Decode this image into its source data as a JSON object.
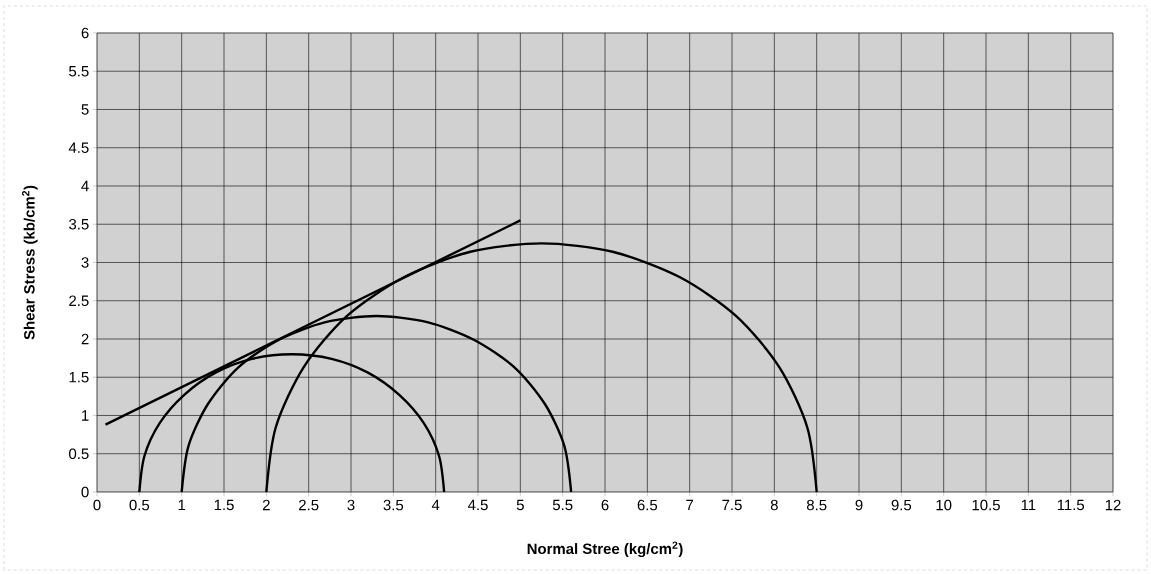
{
  "chart_data": {
    "type": "line",
    "xlabel": "Normal Stree (kg/cm$^{2}$)",
    "ylabel": "Shear Stress (kb/cm$^{2}$)",
    "xlim": [
      0,
      12
    ],
    "ylim": [
      0,
      6
    ],
    "xticks": [
      0,
      0.5,
      1,
      1.5,
      2,
      2.5,
      3,
      3.5,
      4,
      4.5,
      5,
      5.5,
      6,
      6.5,
      7,
      7.5,
      8,
      8.5,
      9,
      9.5,
      10,
      10.5,
      11,
      11.5,
      12
    ],
    "yticks": [
      0,
      0.5,
      1,
      1.5,
      2,
      2.5,
      3,
      3.5,
      4,
      4.5,
      5,
      5.5,
      6
    ],
    "grid": true,
    "marker": "none",
    "line_style": "solid",
    "series": [
      {
        "color": "#000000",
        "x": [
          4.1,
          4.04,
          3.86,
          3.57,
          3.2,
          2.77,
          2.3,
          1.83,
          1.4,
          1.03,
          0.74,
          0.56,
          0.5
        ],
        "values": [
          0,
          0.47,
          0.9,
          1.27,
          1.56,
          1.74,
          1.8,
          1.74,
          1.56,
          1.27,
          0.9,
          0.47,
          0
        ]
      },
      {
        "color": "#000000",
        "x": [
          5.6,
          5.52,
          5.29,
          4.93,
          4.45,
          3.9,
          3.3,
          2.7,
          2.15,
          1.67,
          1.31,
          1.08,
          1.0
        ],
        "values": [
          0,
          0.6,
          1.15,
          1.63,
          1.99,
          2.22,
          2.3,
          2.22,
          1.99,
          1.63,
          1.15,
          0.6,
          0
        ]
      },
      {
        "color": "#000000",
        "x": [
          8.5,
          8.39,
          8.06,
          7.55,
          6.88,
          6.09,
          5.25,
          4.41,
          3.63,
          2.95,
          2.44,
          2.11,
          2.0
        ],
        "values": [
          0,
          0.84,
          1.63,
          2.3,
          2.81,
          3.14,
          3.25,
          3.14,
          2.81,
          2.3,
          1.63,
          0.84,
          0
        ]
      },
      {
        "color": "#000000",
        "x": [
          0.1,
          5.0
        ],
        "values": [
          0.88,
          3.55
        ]
      }
    ]
  }
}
